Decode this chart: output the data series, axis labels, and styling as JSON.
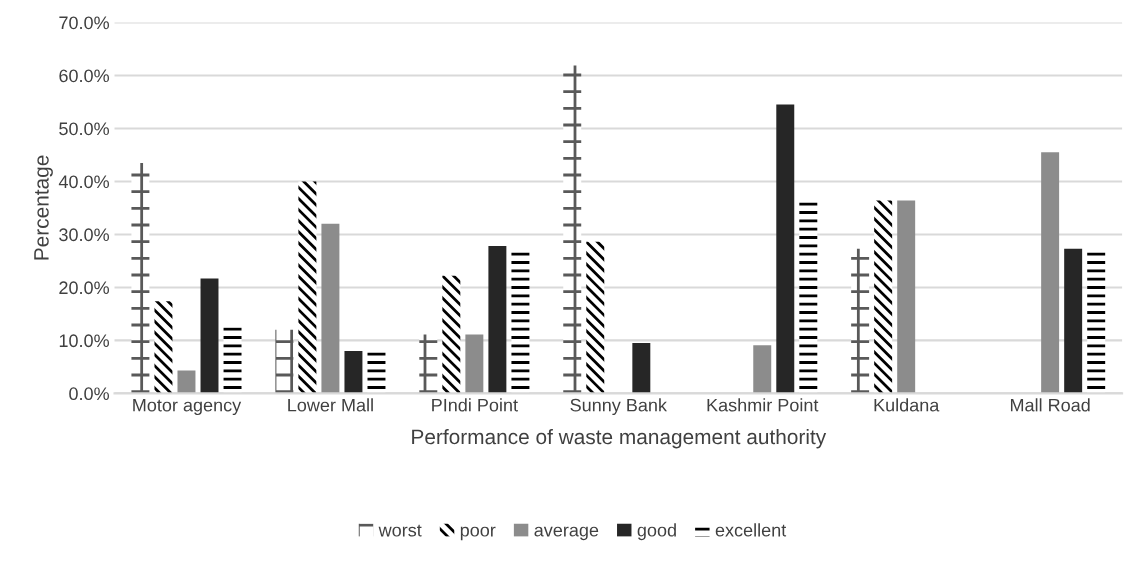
{
  "chart_data": {
    "type": "bar",
    "xlabel": "Performance of waste management authority",
    "ylabel": "Percentage",
    "categories": [
      "Motor agency",
      "Lower Mall",
      "PIndi Point",
      "Sunny Bank",
      "Kashmir Point",
      "Kuldana",
      "Mall Road"
    ],
    "series": [
      {
        "name": "worst",
        "color": "#595959",
        "values": [
          43.5,
          12.0,
          11.1,
          61.9,
          0,
          27.3,
          0
        ]
      },
      {
        "name": "poor",
        "color": "#000000",
        "values": [
          17.4,
          40.0,
          22.2,
          28.6,
          0,
          36.4,
          0
        ]
      },
      {
        "name": "average",
        "color": "#8c8c8c",
        "values": [
          4.3,
          32.0,
          11.1,
          0,
          9.1,
          36.4,
          45.5
        ]
      },
      {
        "name": "good",
        "color": "#262626",
        "values": [
          21.7,
          8.0,
          27.8,
          9.5,
          54.5,
          0,
          27.3
        ]
      },
      {
        "name": "excellent",
        "color": "#000000",
        "values": [
          12.5,
          7.8,
          27.0,
          0,
          36.4,
          0,
          27.3
        ]
      }
    ],
    "ylim": [
      0,
      70
    ],
    "yticks": [
      {
        "value": 0,
        "label": "0.0%"
      },
      {
        "value": 10,
        "label": "10.0%"
      },
      {
        "value": 20,
        "label": "20.0%"
      },
      {
        "value": 30,
        "label": "30.0%"
      },
      {
        "value": 40,
        "label": "40.0%"
      },
      {
        "value": 50,
        "label": "50.0%"
      },
      {
        "value": 60,
        "label": "60.0%"
      },
      {
        "value": 70,
        "label": "70.0%"
      }
    ],
    "grid": "y",
    "legend": "bottom"
  }
}
